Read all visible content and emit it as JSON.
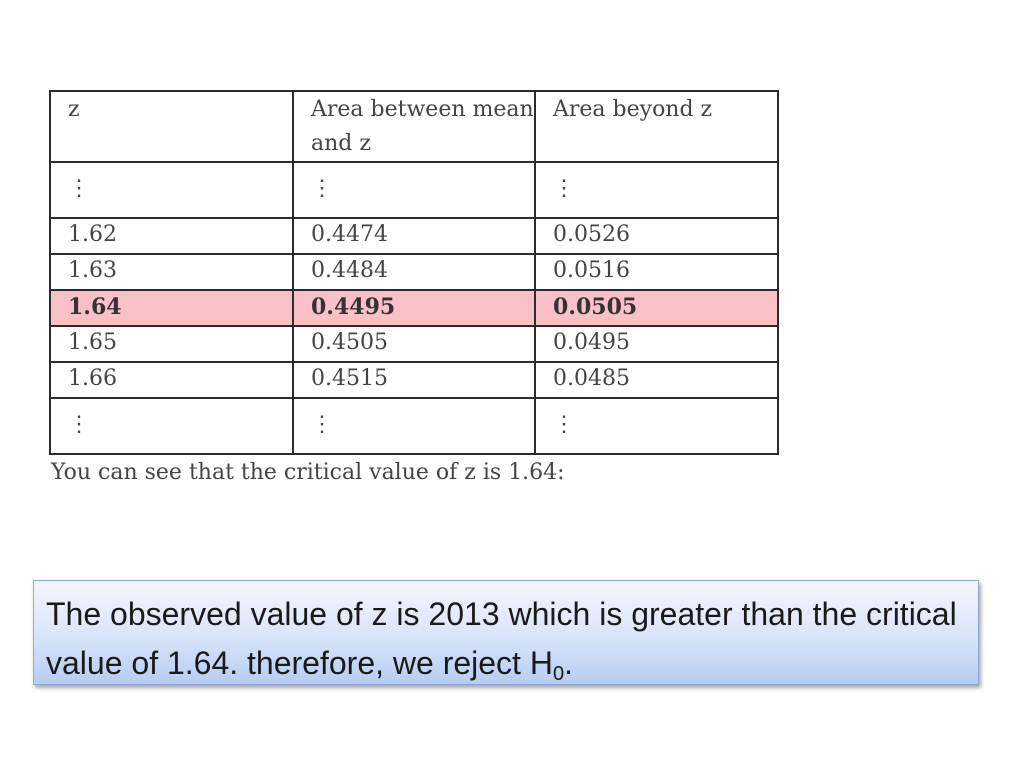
{
  "table": {
    "headers": [
      "z",
      "Area between mean and z",
      "Area beyond z"
    ],
    "ellipsis": "⋮",
    "rows": [
      {
        "z": "1.62",
        "between": "0.4474",
        "beyond": "0.0526"
      },
      {
        "z": "1.63",
        "between": "0.4484",
        "beyond": "0.0516"
      },
      {
        "z": "1.64",
        "between": "0.4495",
        "beyond": "0.0505"
      },
      {
        "z": "1.65",
        "between": "0.4505",
        "beyond": "0.0495"
      },
      {
        "z": "1.66",
        "between": "0.4515",
        "beyond": "0.0485"
      }
    ],
    "highlight_color": "#f9c1c6"
  },
  "caption": "You can see that the critical value of z is 1.64:",
  "conclusion": {
    "text": "The observed value of z is 2013 which is greater than the critical value of 1.64. therefore, we reject H",
    "subscript": "0",
    "end": "."
  }
}
